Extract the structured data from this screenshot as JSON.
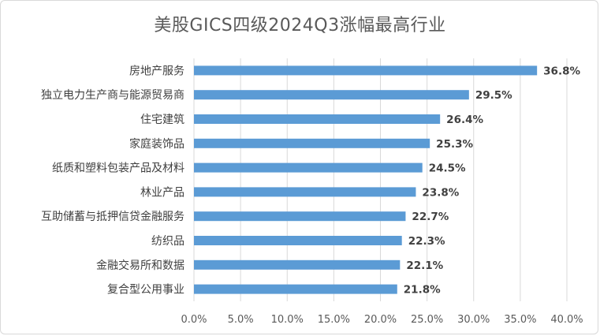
{
  "chart_data": {
    "type": "bar",
    "orientation": "horizontal",
    "title": "美股GICS四级2024Q3涨幅最高行业",
    "categories": [
      "房地产服务",
      "独立电力生产商与能源贸易商",
      "住宅建筑",
      "家庭装饰品",
      "纸质和塑料包装产品及材料",
      "林业产品",
      "互助储蓄与抵押信贷金融服务",
      "纺织品",
      "金融交易所和数据",
      "复合型公用事业"
    ],
    "values": [
      36.8,
      29.5,
      26.4,
      25.3,
      24.5,
      23.8,
      22.7,
      22.3,
      22.1,
      21.8
    ],
    "data_labels": [
      "36.8%",
      "29.5%",
      "26.4%",
      "25.3%",
      "24.5%",
      "23.8%",
      "22.7%",
      "22.3%",
      "22.1%",
      "21.8%"
    ],
    "xlim": [
      0,
      40
    ],
    "x_ticks": [
      0,
      5,
      10,
      15,
      20,
      25,
      30,
      35,
      40
    ],
    "x_tick_labels": [
      "0.0%",
      "5.0%",
      "10.0%",
      "15.0%",
      "20.0%",
      "25.0%",
      "30.0%",
      "35.0%",
      "40.0%"
    ],
    "xlabel": "",
    "ylabel": "",
    "grid": "vertical",
    "legend": "none",
    "bar_color": "#5b9bd5",
    "grid_color": "#d9d9d9"
  }
}
